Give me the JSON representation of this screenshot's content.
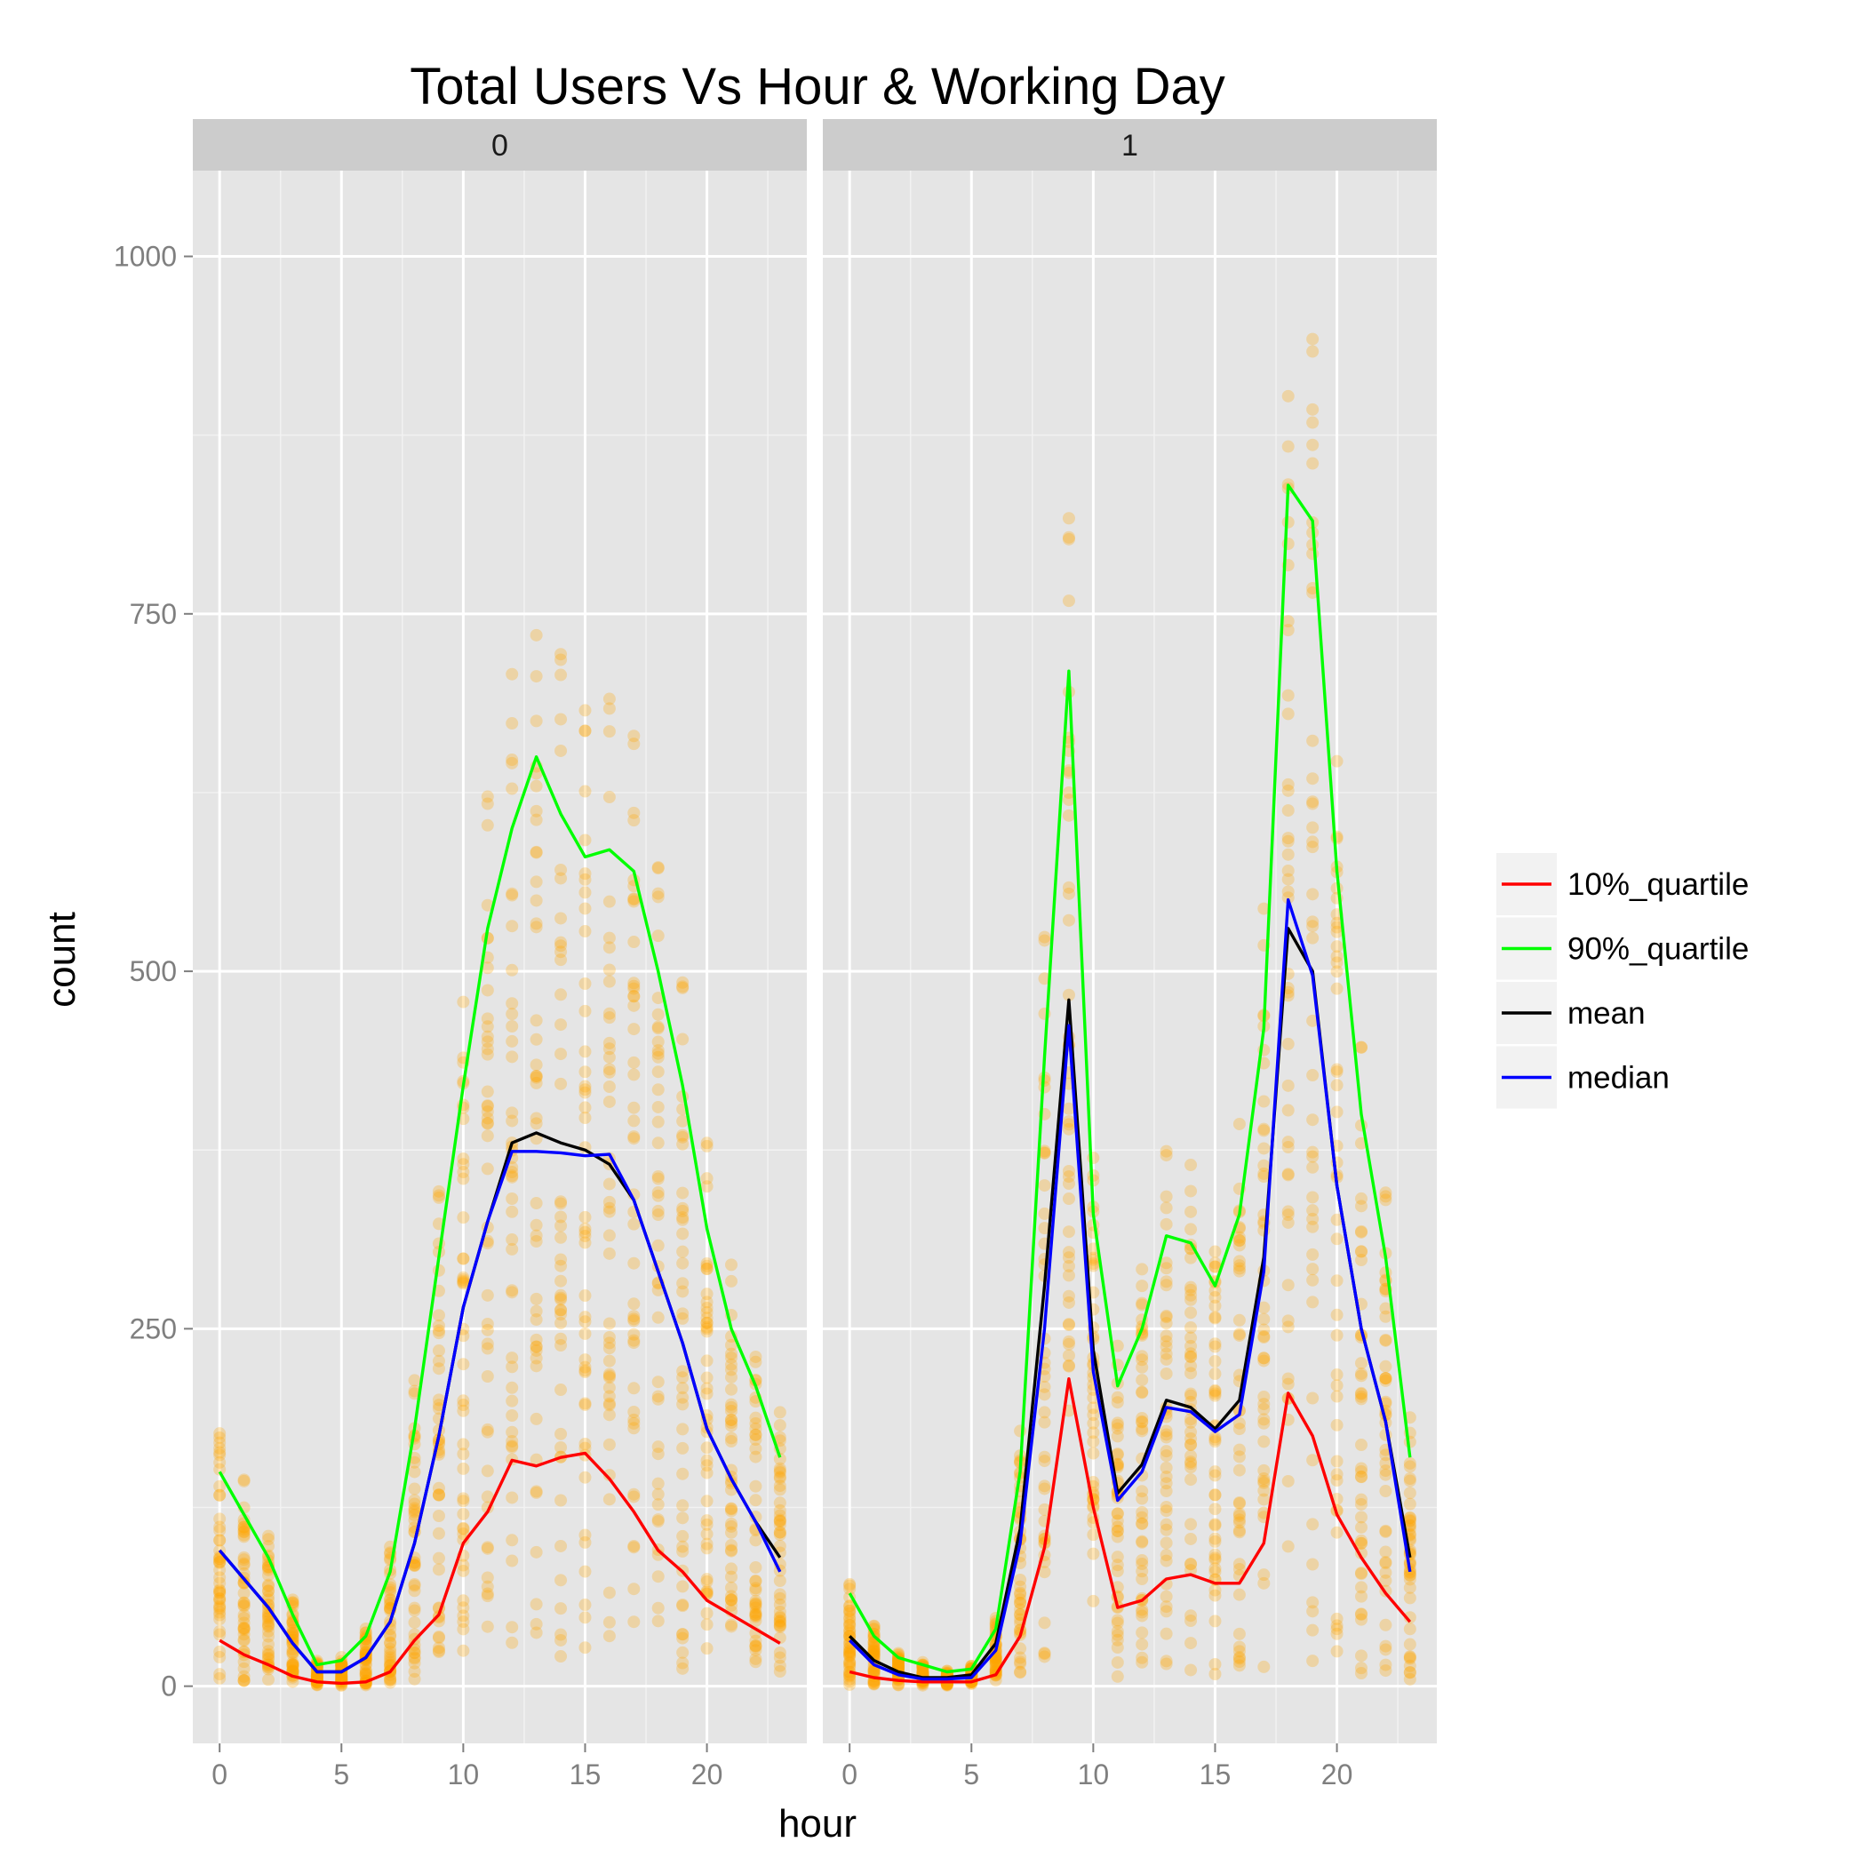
{
  "chart_data": {
    "type": "line",
    "title": "Total Users Vs Hour & Working Day",
    "xlabel": "hour",
    "ylabel": "count",
    "facets": [
      "0",
      "1"
    ],
    "x": [
      0,
      1,
      2,
      3,
      4,
      5,
      6,
      7,
      8,
      9,
      10,
      11,
      12,
      13,
      14,
      15,
      16,
      17,
      18,
      19,
      20,
      21,
      22,
      23
    ],
    "xticks": [
      0,
      5,
      10,
      15,
      20
    ],
    "xlim": [
      -1.1,
      24.1
    ],
    "yticks": [
      0,
      250,
      500,
      750,
      1000
    ],
    "ylim": [
      -40,
      1060
    ],
    "grid": true,
    "legend_position": "right",
    "scatter_color": "#ffa500",
    "series": [
      {
        "name": "10%_quartile",
        "color": "#ff0000",
        "values_by_facet": {
          "0": [
            32,
            22,
            15,
            7,
            3,
            2,
            3,
            10,
            32,
            50,
            100,
            122,
            158,
            154,
            160,
            163,
            145,
            122,
            95,
            80,
            60,
            50,
            40,
            30
          ],
          "1": [
            10,
            6,
            4,
            3,
            3,
            3,
            8,
            35,
            97,
            215,
            125,
            55,
            60,
            75,
            78,
            72,
            72,
            100,
            205,
            175,
            120,
            90,
            65,
            45
          ]
        }
      },
      {
        "name": "90%_quartile",
        "color": "#00ff00",
        "values_by_facet": {
          "0": [
            150,
            120,
            90,
            50,
            15,
            18,
            35,
            80,
            180,
            300,
            420,
            530,
            600,
            650,
            610,
            580,
            585,
            570,
            500,
            420,
            320,
            250,
            210,
            160
          ],
          "1": [
            65,
            35,
            20,
            15,
            10,
            12,
            40,
            150,
            440,
            710,
            330,
            210,
            250,
            315,
            310,
            280,
            330,
            460,
            840,
            815,
            570,
            400,
            300,
            160
          ]
        }
      },
      {
        "name": "mean",
        "color": "#000000",
        "values_by_facet": {
          "0": [
            95,
            75,
            55,
            30,
            10,
            10,
            20,
            45,
            100,
            175,
            265,
            325,
            380,
            387,
            380,
            375,
            365,
            340,
            290,
            240,
            180,
            145,
            115,
            90
          ],
          "1": [
            35,
            18,
            10,
            6,
            6,
            8,
            30,
            110,
            280,
            480,
            235,
            135,
            155,
            200,
            195,
            180,
            200,
            300,
            530,
            500,
            350,
            250,
            185,
            90
          ]
        }
      },
      {
        "name": "median",
        "color": "#0000ff",
        "values_by_facet": {
          "0": [
            95,
            75,
            55,
            30,
            10,
            10,
            20,
            45,
            100,
            175,
            265,
            325,
            374,
            374,
            373,
            371,
            372,
            340,
            290,
            240,
            180,
            145,
            115,
            80
          ],
          "1": [
            32,
            15,
            8,
            5,
            5,
            6,
            25,
            100,
            250,
            462,
            220,
            130,
            150,
            195,
            192,
            178,
            190,
            290,
            550,
            497,
            350,
            250,
            185,
            80
          ]
        }
      }
    ]
  }
}
